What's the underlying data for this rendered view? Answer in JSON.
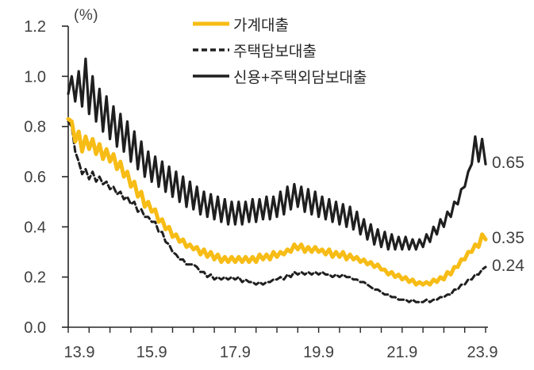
{
  "chart_data": {
    "type": "line",
    "unit_label": "(%)",
    "y_ticks": [
      "0.0",
      "0.2",
      "0.4",
      "0.6",
      "0.8",
      "1.0",
      "1.2"
    ],
    "ylim": [
      0,
      1.2
    ],
    "x_tick_labels": [
      "13.9",
      "15.9",
      "17.9",
      "19.9",
      "21.9",
      "23.9"
    ],
    "x_minor_ticks_per_major": 4,
    "grid": false,
    "legend_position": "top-center",
    "axis_color": "#262626",
    "series": [
      {
        "name": "가계대출",
        "color": "#F7BC15",
        "line_style": "solid",
        "line_width": 5,
        "end_label": "0.35",
        "values": [
          0.83,
          0.82,
          0.74,
          0.78,
          0.7,
          0.76,
          0.71,
          0.75,
          0.69,
          0.73,
          0.67,
          0.71,
          0.66,
          0.69,
          0.63,
          0.66,
          0.6,
          0.62,
          0.56,
          0.58,
          0.52,
          0.54,
          0.48,
          0.5,
          0.46,
          0.47,
          0.42,
          0.43,
          0.39,
          0.4,
          0.36,
          0.37,
          0.34,
          0.35,
          0.32,
          0.33,
          0.31,
          0.32,
          0.29,
          0.31,
          0.28,
          0.3,
          0.27,
          0.29,
          0.26,
          0.28,
          0.26,
          0.28,
          0.26,
          0.28,
          0.26,
          0.28,
          0.26,
          0.28,
          0.26,
          0.29,
          0.27,
          0.29,
          0.27,
          0.3,
          0.28,
          0.3,
          0.29,
          0.31,
          0.3,
          0.33,
          0.31,
          0.33,
          0.3,
          0.32,
          0.3,
          0.32,
          0.3,
          0.31,
          0.29,
          0.31,
          0.28,
          0.3,
          0.28,
          0.3,
          0.27,
          0.29,
          0.27,
          0.28,
          0.26,
          0.27,
          0.25,
          0.26,
          0.24,
          0.25,
          0.23,
          0.23,
          0.21,
          0.22,
          0.2,
          0.21,
          0.19,
          0.2,
          0.18,
          0.19,
          0.17,
          0.18,
          0.17,
          0.18,
          0.17,
          0.19,
          0.18,
          0.2,
          0.19,
          0.22,
          0.21,
          0.24,
          0.24,
          0.27,
          0.27,
          0.3,
          0.3,
          0.33,
          0.32,
          0.37,
          0.35
        ]
      },
      {
        "name": "주택담보대출",
        "color": "#1F1F1F",
        "line_style": "dashed",
        "line_width": 3,
        "end_label": "0.24",
        "values": [
          0.82,
          0.8,
          0.7,
          0.66,
          0.61,
          0.63,
          0.59,
          0.62,
          0.58,
          0.6,
          0.57,
          0.58,
          0.55,
          0.56,
          0.53,
          0.54,
          0.51,
          0.52,
          0.49,
          0.5,
          0.46,
          0.47,
          0.44,
          0.44,
          0.42,
          0.42,
          0.38,
          0.38,
          0.34,
          0.33,
          0.3,
          0.29,
          0.27,
          0.27,
          0.25,
          0.25,
          0.25,
          0.24,
          0.22,
          0.22,
          0.2,
          0.21,
          0.19,
          0.2,
          0.19,
          0.2,
          0.19,
          0.2,
          0.19,
          0.2,
          0.18,
          0.19,
          0.18,
          0.18,
          0.17,
          0.18,
          0.17,
          0.18,
          0.18,
          0.19,
          0.19,
          0.2,
          0.19,
          0.21,
          0.2,
          0.22,
          0.21,
          0.22,
          0.21,
          0.22,
          0.21,
          0.22,
          0.21,
          0.22,
          0.21,
          0.21,
          0.2,
          0.21,
          0.2,
          0.21,
          0.2,
          0.2,
          0.19,
          0.19,
          0.18,
          0.18,
          0.17,
          0.16,
          0.15,
          0.15,
          0.14,
          0.13,
          0.13,
          0.12,
          0.12,
          0.11,
          0.11,
          0.11,
          0.1,
          0.11,
          0.1,
          0.1,
          0.1,
          0.11,
          0.1,
          0.11,
          0.11,
          0.12,
          0.12,
          0.13,
          0.13,
          0.15,
          0.15,
          0.17,
          0.17,
          0.19,
          0.19,
          0.21,
          0.21,
          0.23,
          0.24
        ]
      },
      {
        "name": "신용+주택외담보대출",
        "color": "#1F1F1F",
        "line_style": "solid",
        "line_width": 3.2,
        "end_label": "0.65",
        "values": [
          0.93,
          1.0,
          0.9,
          1.02,
          0.88,
          1.07,
          0.85,
          1.0,
          0.82,
          0.95,
          0.78,
          0.92,
          0.75,
          0.88,
          0.72,
          0.85,
          0.7,
          0.82,
          0.66,
          0.78,
          0.63,
          0.74,
          0.6,
          0.7,
          0.58,
          0.68,
          0.56,
          0.66,
          0.54,
          0.64,
          0.52,
          0.62,
          0.5,
          0.6,
          0.48,
          0.58,
          0.47,
          0.56,
          0.45,
          0.54,
          0.44,
          0.53,
          0.43,
          0.52,
          0.42,
          0.51,
          0.41,
          0.5,
          0.41,
          0.5,
          0.41,
          0.5,
          0.42,
          0.51,
          0.42,
          0.51,
          0.43,
          0.52,
          0.43,
          0.52,
          0.44,
          0.54,
          0.45,
          0.56,
          0.47,
          0.57,
          0.48,
          0.56,
          0.46,
          0.55,
          0.45,
          0.54,
          0.44,
          0.52,
          0.43,
          0.51,
          0.42,
          0.5,
          0.41,
          0.49,
          0.4,
          0.48,
          0.39,
          0.46,
          0.37,
          0.43,
          0.35,
          0.41,
          0.33,
          0.39,
          0.32,
          0.38,
          0.31,
          0.37,
          0.31,
          0.36,
          0.31,
          0.36,
          0.31,
          0.35,
          0.31,
          0.35,
          0.32,
          0.37,
          0.34,
          0.4,
          0.37,
          0.43,
          0.4,
          0.46,
          0.44,
          0.5,
          0.49,
          0.55,
          0.56,
          0.62,
          0.65,
          0.76,
          0.66,
          0.75,
          0.65
        ]
      }
    ]
  }
}
